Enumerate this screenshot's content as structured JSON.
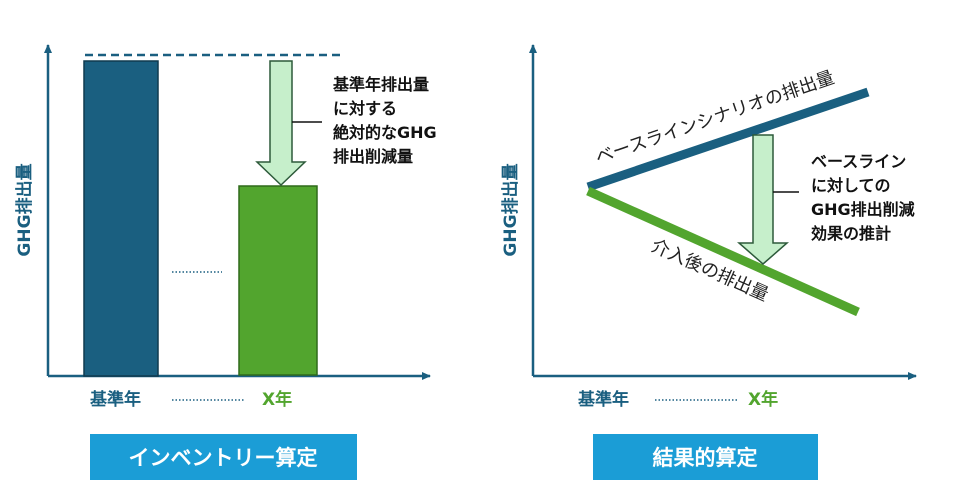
{
  "colors": {
    "blue": "#1a5f80",
    "green": "#52a52e",
    "arrow_fill": "#c6efcb",
    "title_bg": "#1b9dd6",
    "text": "#111111"
  },
  "left": {
    "y_axis_label": "GHG排出量",
    "annotation": [
      "基準年排出量",
      "に対する",
      "絶対的なGHG",
      "排出削減量"
    ],
    "x_labels": {
      "base": "基準年",
      "target": "X年"
    },
    "title": "インベントリー算定"
  },
  "right": {
    "y_axis_label": "GHG排出量",
    "baseline_label": "ベースラインシナリオの排出量",
    "intervention_label": "介入後の排出量",
    "annotation": [
      "ベースライン",
      "に対しての",
      "GHG排出削減",
      "効果の推計"
    ],
    "x_labels": {
      "base": "基準年",
      "target": "X年"
    },
    "title": "結果的算定"
  }
}
